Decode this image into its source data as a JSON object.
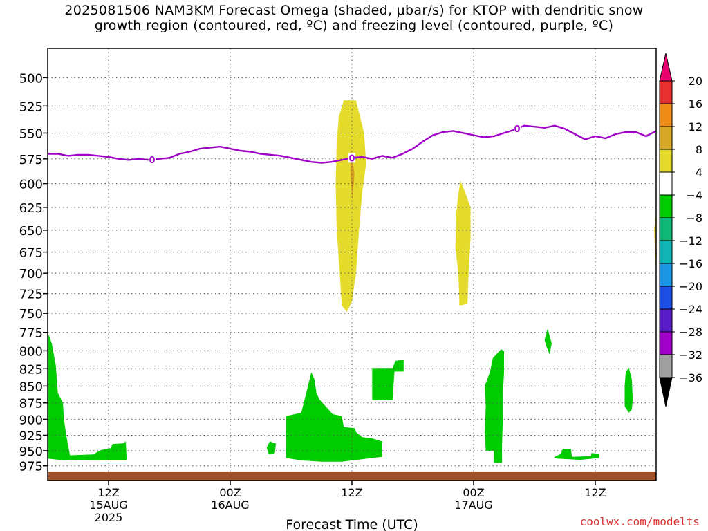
{
  "title": {
    "line1": "2025081506 NAM3KM Forecast Omega (shaded, μbar/s) for KTOP with dendritic snow",
    "line2": "growth region (contoured, red, ºC) and freezing level (contoured, purple, ºC)"
  },
  "credit": "coolwx.com/modelts",
  "colors": {
    "freezing_level": "#a000c8",
    "ground": "#a0522d",
    "green": "#00cc00",
    "yellow": "#e4db2c",
    "orange": "#d8a020"
  },
  "chart_data": {
    "type": "heatmap",
    "title": "2025081506 NAM3KM Forecast Omega (shaded, μbar/s) for KTOP with dendritic snow growth region (contoured, red, ºC) and freezing level (contoured, purple, ºC)",
    "xlabel": "Forecast Time (UTC)",
    "ylabel": "",
    "x_unit": "hours since 2025-08-15 06Z",
    "xlim": [
      0,
      60
    ],
    "ylim": [
      1000,
      480
    ],
    "y_ticks": [
      500,
      525,
      550,
      575,
      600,
      625,
      650,
      675,
      700,
      725,
      750,
      775,
      800,
      825,
      850,
      875,
      900,
      925,
      950,
      975
    ],
    "x_ticks": [
      {
        "x": 6,
        "l1": "12Z",
        "l2": "15AUG",
        "l3": "2025"
      },
      {
        "x": 18,
        "l1": "00Z",
        "l2": "16AUG",
        "l3": ""
      },
      {
        "x": 30,
        "l1": "12Z",
        "l2": "",
        "l3": ""
      },
      {
        "x": 42,
        "l1": "00Z",
        "l2": "17AUG",
        "l3": ""
      },
      {
        "x": 54,
        "l1": "12Z",
        "l2": "",
        "l3": ""
      }
    ],
    "grid": true,
    "colorbar": {
      "labels": [
        "20",
        "16",
        "12",
        "8",
        "4",
        "−4",
        "−8",
        "−12",
        "−16",
        "−20",
        "−24",
        "−28",
        "−32",
        "−36"
      ],
      "colors": [
        "#e8006e",
        "#e83030",
        "#f08c18",
        "#d8a828",
        "#e4db2c",
        "#ffffff",
        "#00cc00",
        "#10b878",
        "#10b4b4",
        "#1e96e6",
        "#1e50e6",
        "#5a1ec8",
        "#a000c8",
        "#a0a0a0",
        "#000000"
      ]
    },
    "freezing_level": {
      "label": "0",
      "x": [
        0,
        1,
        2,
        3,
        4,
        5,
        6,
        7,
        8,
        9,
        10,
        11,
        12,
        13,
        14,
        15,
        16,
        17,
        18,
        19,
        20,
        21,
        22,
        23,
        24,
        25,
        26,
        27,
        28,
        29,
        30,
        31,
        32,
        33,
        34,
        35,
        36,
        37,
        38,
        39,
        40,
        41,
        42,
        43,
        44,
        45,
        46,
        47,
        48,
        49,
        50,
        51,
        52,
        53,
        54,
        55,
        56,
        57,
        58,
        59,
        60
      ],
      "y": [
        570,
        570,
        572,
        571,
        571,
        572,
        573,
        575,
        576,
        575,
        576,
        575,
        574,
        570,
        568,
        565,
        564,
        563,
        565,
        567,
        568,
        570,
        571,
        572,
        574,
        576,
        578,
        579,
        578,
        576,
        574,
        573,
        575,
        572,
        574,
        570,
        565,
        558,
        552,
        549,
        548,
        550,
        552,
        554,
        553,
        550,
        547,
        543,
        544,
        545,
        543,
        546,
        551,
        556,
        553,
        555,
        551,
        549,
        549,
        553,
        548
      ],
      "label_x": [
        10.3,
        30.0,
        46.3
      ]
    },
    "regions": [
      {
        "value": "4 to 8",
        "color": "yellow",
        "points": [
          [
            29.2,
            520
          ],
          [
            30.4,
            520
          ],
          [
            31.2,
            550
          ],
          [
            31.4,
            580
          ],
          [
            31.0,
            610
          ],
          [
            30.7,
            650
          ],
          [
            30.4,
            700
          ],
          [
            30.0,
            735
          ],
          [
            29.5,
            748
          ],
          [
            29.0,
            740
          ],
          [
            28.8,
            700
          ],
          [
            28.5,
            650
          ],
          [
            28.4,
            600
          ],
          [
            28.5,
            560
          ],
          [
            28.7,
            535
          ]
        ]
      },
      {
        "value": "8 to 12",
        "color": "orange",
        "points": [
          [
            29.9,
            565
          ],
          [
            30.25,
            590
          ],
          [
            30.05,
            618
          ],
          [
            29.85,
            590
          ]
        ]
      },
      {
        "value": "4 to 8",
        "color": "yellow",
        "points": [
          [
            40.7,
            597
          ],
          [
            41.2,
            610
          ],
          [
            41.7,
            625
          ],
          [
            41.7,
            660
          ],
          [
            41.5,
            700
          ],
          [
            41.4,
            738
          ],
          [
            40.6,
            740
          ],
          [
            40.5,
            700
          ],
          [
            40.2,
            670
          ],
          [
            40.3,
            630
          ],
          [
            40.5,
            610
          ]
        ]
      },
      {
        "value": "4 to 8",
        "color": "yellow",
        "points": [
          [
            60,
            630
          ],
          [
            59.8,
            650
          ],
          [
            59.9,
            680
          ],
          [
            60,
            700
          ]
        ]
      },
      {
        "value": "-4 to -8",
        "color": "green",
        "points": [
          [
            0,
            775
          ],
          [
            0.4,
            790
          ],
          [
            0.8,
            820
          ],
          [
            1.0,
            860
          ],
          [
            1.5,
            875
          ],
          [
            1.6,
            900
          ],
          [
            1.8,
            922
          ],
          [
            2.0,
            940
          ],
          [
            2.2,
            958
          ],
          [
            1.6,
            966
          ],
          [
            0,
            963
          ]
        ]
      },
      {
        "value": "-4 to -8",
        "color": "green",
        "points": [
          [
            1.6,
            958
          ],
          [
            4.5,
            956
          ],
          [
            5.2,
            949
          ],
          [
            6.2,
            946
          ],
          [
            6.4,
            939
          ],
          [
            7.4,
            938
          ],
          [
            7.7,
            935
          ],
          [
            7.8,
            966
          ],
          [
            5.0,
            966
          ],
          [
            2.2,
            965
          ],
          [
            1.6,
            966
          ]
        ]
      },
      {
        "value": "-4 to -8",
        "color": "green",
        "points": [
          [
            21.9,
            935
          ],
          [
            22.5,
            938
          ],
          [
            22.4,
            954
          ],
          [
            21.8,
            956
          ],
          [
            21.6,
            945
          ]
        ]
      },
      {
        "value": "-4 to -8",
        "color": "green",
        "points": [
          [
            26.0,
            830
          ],
          [
            26.3,
            840
          ],
          [
            26.5,
            860
          ],
          [
            26.8,
            870
          ],
          [
            27.4,
            880
          ],
          [
            28.1,
            892
          ],
          [
            29.0,
            895
          ],
          [
            29.2,
            912
          ],
          [
            30.3,
            914
          ],
          [
            30.4,
            920
          ],
          [
            31.0,
            928
          ],
          [
            32.0,
            930
          ],
          [
            33.0,
            935
          ],
          [
            33.0,
            960
          ],
          [
            32.0,
            962
          ],
          [
            31.0,
            964
          ],
          [
            30.0,
            966
          ],
          [
            29.0,
            968
          ],
          [
            27.0,
            968
          ],
          [
            25.0,
            966
          ],
          [
            23.5,
            962
          ],
          [
            23.5,
            895
          ],
          [
            25.0,
            890
          ],
          [
            25.5,
            860
          ]
        ]
      },
      {
        "value": "-4 to -8",
        "color": "green",
        "points": [
          [
            32.0,
            824
          ],
          [
            34.0,
            824
          ],
          [
            34.3,
            814
          ],
          [
            35.1,
            812
          ],
          [
            35.1,
            829
          ],
          [
            34.2,
            829
          ],
          [
            34.0,
            871
          ],
          [
            32.0,
            871
          ]
        ]
      },
      {
        "value": "-4 to -8",
        "color": "green",
        "points": [
          [
            44.7,
            798
          ],
          [
            45.0,
            800
          ],
          [
            45.0,
            830
          ],
          [
            44.9,
            860
          ],
          [
            44.9,
            895
          ],
          [
            44.8,
            940
          ],
          [
            44.8,
            970
          ],
          [
            44.0,
            970
          ],
          [
            44.0,
            950
          ],
          [
            43.2,
            950
          ],
          [
            43.1,
            920
          ],
          [
            43.2,
            880
          ],
          [
            43.1,
            850
          ],
          [
            43.6,
            830
          ],
          [
            43.9,
            810
          ]
        ]
      },
      {
        "value": "-4 to -8",
        "color": "green",
        "points": [
          [
            49.3,
            770
          ],
          [
            49.7,
            790
          ],
          [
            49.5,
            805
          ],
          [
            49.2,
            795
          ],
          [
            49.0,
            785
          ]
        ]
      },
      {
        "value": "-4 to -8",
        "color": "green",
        "points": [
          [
            49.9,
            961
          ],
          [
            50.6,
            955
          ],
          [
            50.8,
            947
          ],
          [
            51.6,
            947
          ],
          [
            51.7,
            960
          ],
          [
            53.6,
            959
          ],
          [
            53.6,
            954
          ],
          [
            54.4,
            955
          ],
          [
            54.4,
            962
          ],
          [
            52.5,
            965
          ],
          [
            50.2,
            963
          ]
        ]
      },
      {
        "value": "-4 to -8",
        "color": "green",
        "points": [
          [
            57.3,
            823
          ],
          [
            57.6,
            840
          ],
          [
            57.7,
            870
          ],
          [
            57.6,
            885
          ],
          [
            57.3,
            890
          ],
          [
            56.9,
            880
          ],
          [
            56.9,
            850
          ],
          [
            57.0,
            830
          ]
        ]
      }
    ],
    "ground_level": 980
  }
}
